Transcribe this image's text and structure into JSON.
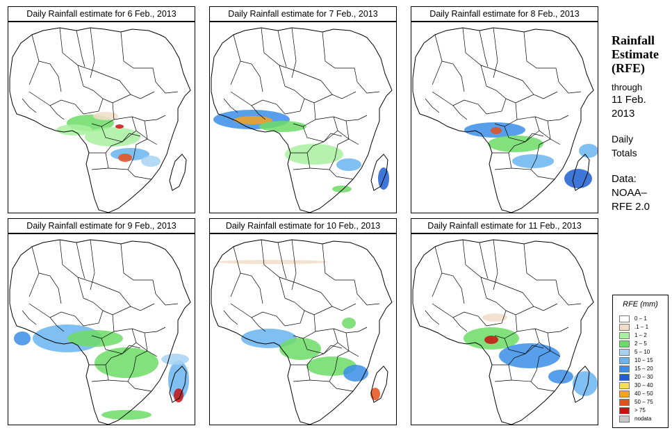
{
  "title_lines": [
    "Rainfall",
    "Estimate",
    "(RFE)"
  ],
  "through_label": "through",
  "through_date_lines": [
    "11 Feb.",
    "2013"
  ],
  "period_lines": [
    "Daily",
    "Totals"
  ],
  "source_label": "Data:",
  "source_lines": [
    "NOAA–",
    "RFE 2.0"
  ],
  "panels": [
    {
      "title": "Daily Rainfall estimate for  6 Feb., 2013"
    },
    {
      "title": "Daily Rainfall estimate for  7 Feb., 2013"
    },
    {
      "title": "Daily Rainfall estimate for  8 Feb., 2013"
    },
    {
      "title": "Daily Rainfall estimate for  9 Feb., 2013"
    },
    {
      "title": "Daily Rainfall estimate for  10 Feb., 2013"
    },
    {
      "title": "Daily Rainfall estimate for  11 Feb., 2013"
    }
  ],
  "legend": {
    "title": "RFE (mm)",
    "items": [
      {
        "label": "0 – 1",
        "color": "#ffffff"
      },
      {
        "label": ".1 – 1",
        "color": "#f2dcc8"
      },
      {
        "label": "1 – 2",
        "color": "#a8f0a0"
      },
      {
        "label": "2 – 5",
        "color": "#6ddc66"
      },
      {
        "label": "5 – 10",
        "color": "#a6d2f2"
      },
      {
        "label": "10 – 15",
        "color": "#6ab4ee"
      },
      {
        "label": "15 – 20",
        "color": "#3a8ee6"
      },
      {
        "label": "20 – 30",
        "color": "#1c5fd0"
      },
      {
        "label": "30 – 40",
        "color": "#f5dc50"
      },
      {
        "label": "40 – 50",
        "color": "#f5a21e"
      },
      {
        "label": "50 – 75",
        "color": "#e5501a"
      },
      {
        "label": "> 75",
        "color": "#c81010"
      },
      {
        "label": "nodata",
        "color": "#c8c8c8"
      }
    ]
  }
}
